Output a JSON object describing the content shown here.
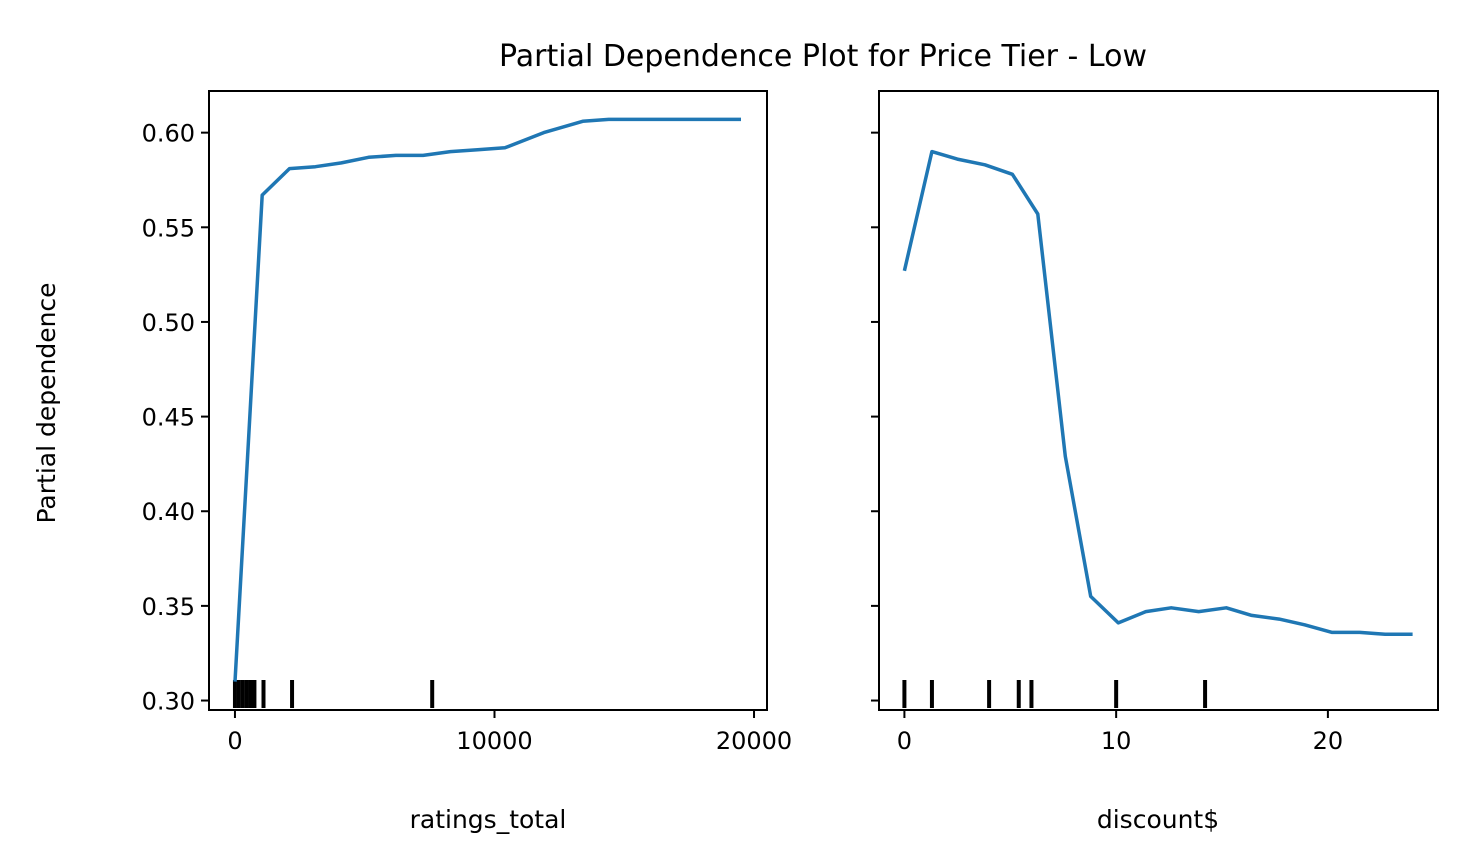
{
  "figure": {
    "title": "Partial Dependence Plot for Price Tier - Low"
  },
  "chart_data": [
    {
      "type": "line",
      "xlabel": "ratings_total",
      "ylabel": "Partial dependence",
      "xlim": [
        -1000,
        20500
      ],
      "ylim": [
        0.295,
        0.622
      ],
      "xticks": [
        0,
        10000,
        20000
      ],
      "xtick_labels": [
        "0",
        "10000",
        "20000"
      ],
      "yticks": [
        0.3,
        0.35,
        0.4,
        0.45,
        0.5,
        0.55,
        0.6
      ],
      "ytick_labels": [
        "0.30",
        "0.35",
        "0.40",
        "0.45",
        "0.50",
        "0.55",
        "0.60"
      ],
      "color": "#1f77b4",
      "series": [
        {
          "x": [
            0,
            1050,
            2100,
            3100,
            4100,
            5150,
            6200,
            7250,
            8300,
            9350,
            10400,
            11900,
            13400,
            14400,
            15400,
            16400,
            17400,
            18400,
            19500
          ],
          "y": [
            0.31,
            0.567,
            0.581,
            0.582,
            0.584,
            0.587,
            0.588,
            0.588,
            0.59,
            0.591,
            0.592,
            0.6,
            0.606,
            0.607,
            0.607,
            0.607,
            0.607,
            0.607,
            0.607
          ]
        }
      ],
      "rug": [
        0,
        150,
        300,
        450,
        600,
        750,
        1100,
        2200,
        7600
      ]
    },
    {
      "type": "line",
      "xlabel": "discount$",
      "xlim": [
        -1.2,
        25.2
      ],
      "ylim": [
        0.295,
        0.622
      ],
      "xticks": [
        0,
        10,
        20
      ],
      "xtick_labels": [
        "0",
        "10",
        "20"
      ],
      "yticks": [
        0.3,
        0.35,
        0.4,
        0.45,
        0.5,
        0.55,
        0.6
      ],
      "color": "#1f77b4",
      "series": [
        {
          "x": [
            0,
            1.3,
            2.5,
            3.8,
            5.1,
            6.3,
            7.6,
            8.8,
            10.1,
            11.4,
            12.6,
            13.9,
            15.2,
            16.4,
            17.7,
            18.9,
            20.2,
            21.5,
            22.7,
            24.0
          ],
          "y": [
            0.527,
            0.59,
            0.586,
            0.583,
            0.578,
            0.557,
            0.429,
            0.355,
            0.341,
            0.347,
            0.349,
            0.347,
            0.349,
            0.345,
            0.343,
            0.34,
            0.336,
            0.336,
            0.335,
            0.335
          ]
        }
      ],
      "rug": [
        0,
        1.3,
        4.0,
        5.4,
        6.0,
        10.0,
        14.2
      ]
    }
  ]
}
